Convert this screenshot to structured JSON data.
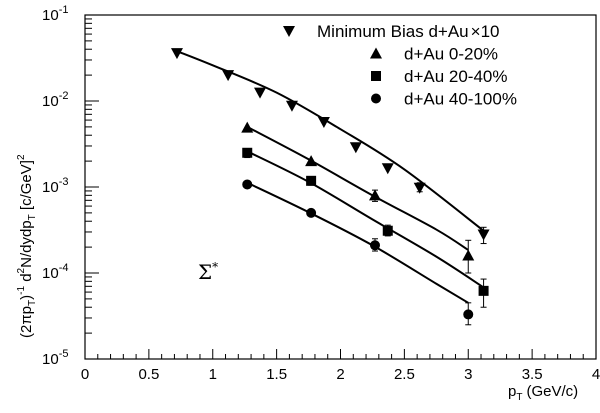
{
  "chart_data": {
    "type": "scatter",
    "xlabel_main": "p",
    "xlabel_sub": "T",
    "xlabel_unit": "(GeV/c)",
    "ylabel_parts": {
      "p1": "(2πp",
      "p1_sub": "T",
      "p2": ")",
      "p2_sup": "-1",
      "p3": " d",
      "p3_sup": "2",
      "p4": "N/dydp",
      "p4_sub": "T",
      "p5": " [c/GeV]",
      "p5_sup": "2"
    },
    "annotation": {
      "base": "Σ",
      "sup": "*"
    },
    "xlim": [
      0,
      4
    ],
    "ylim": [
      1e-05,
      0.1
    ],
    "y_scale": "log",
    "x_ticks": [
      {
        "v": 0,
        "label": "0"
      },
      {
        "v": 0.5,
        "label": "0.5"
      },
      {
        "v": 1,
        "label": "1"
      },
      {
        "v": 1.5,
        "label": "1.5"
      },
      {
        "v": 2,
        "label": "2"
      },
      {
        "v": 2.5,
        "label": "2.5"
      },
      {
        "v": 3,
        "label": "3"
      },
      {
        "v": 3.5,
        "label": "3.5"
      },
      {
        "v": 4,
        "label": "4"
      }
    ],
    "y_ticks": [
      {
        "v": 1e-05,
        "base": "10",
        "exp": "-5"
      },
      {
        "v": 0.0001,
        "base": "10",
        "exp": "-4"
      },
      {
        "v": 0.001,
        "base": "10",
        "exp": "-3"
      },
      {
        "v": 0.01,
        "base": "10",
        "exp": "-2"
      },
      {
        "v": 0.1,
        "base": "10",
        "exp": "-1"
      }
    ],
    "legend_position": "top-right",
    "series": [
      {
        "name": "Minimum Bias d+Au×10",
        "legend_parts": [
          "Minimum Bias d+Au",
          "×",
          "10"
        ],
        "marker": "triangle-down",
        "points": [
          {
            "x": 0.72,
            "y": 0.036
          },
          {
            "x": 1.12,
            "y": 0.02
          },
          {
            "x": 1.37,
            "y": 0.0125
          },
          {
            "x": 1.62,
            "y": 0.0088
          },
          {
            "x": 1.87,
            "y": 0.0057
          },
          {
            "x": 2.12,
            "y": 0.0029
          },
          {
            "x": 2.37,
            "y": 0.00165
          },
          {
            "x": 2.62,
            "y": 0.00098,
            "yerr": [
              0.00088,
              0.00112
            ]
          },
          {
            "x": 3.12,
            "y": 0.00028,
            "yerr": [
              0.00022,
              0.00034
            ]
          }
        ],
        "fit": [
          [
            0.72,
            0.038
          ],
          [
            1.0,
            0.026
          ],
          [
            1.5,
            0.0125
          ],
          [
            2.0,
            0.0047
          ],
          [
            2.5,
            0.0016
          ],
          [
            3.12,
            0.00031
          ]
        ]
      },
      {
        "name": "d+Au 0-20%",
        "legend_parts": [
          "d+Au 0-20%"
        ],
        "marker": "triangle-up",
        "points": [
          {
            "x": 1.27,
            "y": 0.0049
          },
          {
            "x": 1.77,
            "y": 0.002
          },
          {
            "x": 2.27,
            "y": 0.0008,
            "yerr": [
              0.00068,
              0.00092
            ]
          },
          {
            "x": 3.0,
            "y": 0.00016,
            "yerr": [
              0.0001,
              0.00024
            ]
          }
        ],
        "fit": [
          [
            1.27,
            0.005
          ],
          [
            1.75,
            0.0021
          ],
          [
            2.25,
            0.0008
          ],
          [
            2.75,
            0.00032
          ],
          [
            3.0,
            0.000185
          ]
        ]
      },
      {
        "name": "d+Au 20-40%",
        "legend_parts": [
          "d+Au 20-40%"
        ],
        "marker": "square",
        "points": [
          {
            "x": 1.27,
            "y": 0.0025,
            "yerr": [
              0.0022,
              0.0028
            ]
          },
          {
            "x": 1.77,
            "y": 0.00118,
            "yerr": [
              0.00105,
              0.00132
            ]
          },
          {
            "x": 2.37,
            "y": 0.00031,
            "yerr": [
              0.00027,
              0.00036
            ]
          },
          {
            "x": 3.12,
            "y": 6.2e-05,
            "yerr": [
              4e-05,
              8.5e-05
            ]
          }
        ],
        "fit": [
          [
            1.27,
            0.0026
          ],
          [
            1.75,
            0.00115
          ],
          [
            2.25,
            0.00042
          ],
          [
            2.75,
            0.000155
          ],
          [
            3.12,
            6.8e-05
          ]
        ]
      },
      {
        "name": "d+Au 40-100%",
        "legend_parts": [
          "d+Au 40-100%"
        ],
        "marker": "circle",
        "points": [
          {
            "x": 1.27,
            "y": 0.00107
          },
          {
            "x": 1.77,
            "y": 0.0005
          },
          {
            "x": 2.27,
            "y": 0.00021,
            "yerr": [
              0.00018,
              0.00025
            ]
          },
          {
            "x": 3.0,
            "y": 3.3e-05,
            "yerr": [
              2.5e-05,
              4.5e-05
            ]
          }
        ],
        "fit": [
          [
            1.27,
            0.00112
          ],
          [
            1.75,
            0.00051
          ],
          [
            2.25,
            0.00021
          ],
          [
            2.75,
            7.5e-05
          ],
          [
            3.0,
            4.5e-05
          ]
        ]
      }
    ]
  }
}
